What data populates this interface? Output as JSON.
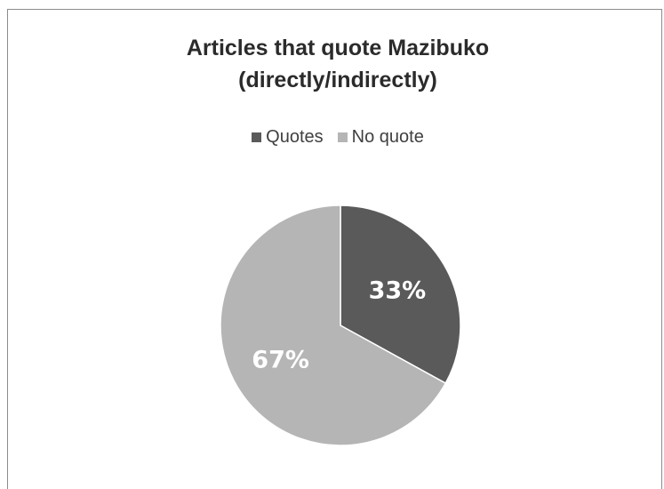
{
  "chart_data": {
    "type": "pie",
    "title_line1": "Articles that quote Mazibuko",
    "title_line2": "(directly/indirectly)",
    "legend_placement": "top",
    "categories": [
      "Quotes",
      "No quote"
    ],
    "values": [
      33,
      67
    ],
    "data_labels": [
      "33%",
      "67%"
    ],
    "colors": [
      "#5a5a5a",
      "#b5b5b5"
    ]
  }
}
